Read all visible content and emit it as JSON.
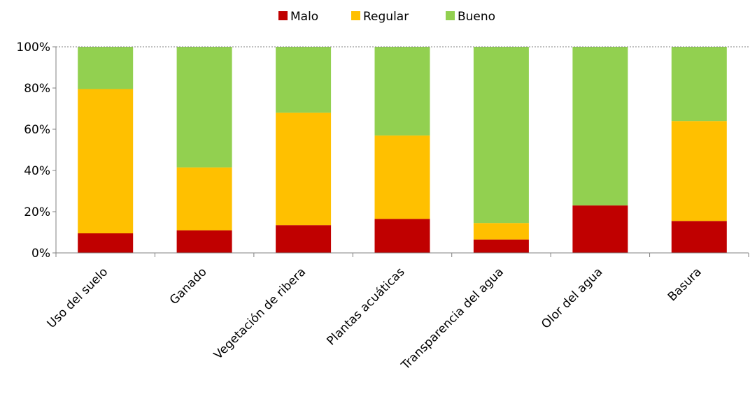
{
  "chart_data": {
    "type": "bar",
    "stacked": true,
    "percent": true,
    "categories": [
      "Uso del suelo",
      "Ganado",
      "Vegetación de ribera",
      "Plantas acuáticas",
      "Transparencia del agua",
      "Olor del agua",
      "Basura"
    ],
    "series": [
      {
        "name": "Malo",
        "color": "#c00000",
        "values": [
          9.5,
          11,
          13.5,
          16.5,
          6.5,
          23,
          15.5
        ]
      },
      {
        "name": "Regular",
        "color": "#ffc000",
        "values": [
          70,
          30.5,
          54.5,
          40.5,
          8,
          0,
          48.5
        ]
      },
      {
        "name": "Bueno",
        "color": "#92d050",
        "values": [
          20.5,
          58.5,
          32,
          43,
          85.5,
          77,
          36
        ]
      }
    ],
    "yticks": [
      "0%",
      "20%",
      "40%",
      "60%",
      "80%",
      "100%"
    ],
    "ylim": [
      0,
      100
    ],
    "legend_position": "top",
    "grid": false
  }
}
